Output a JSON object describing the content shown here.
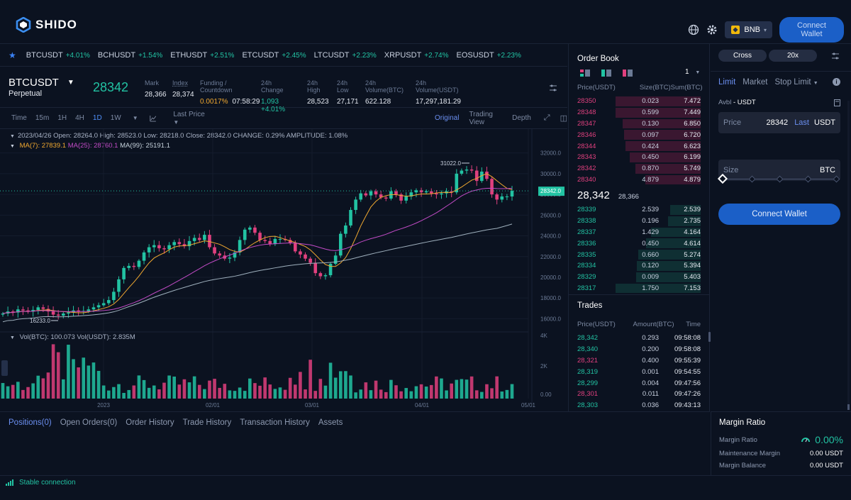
{
  "header": {
    "logo": "SHIDO",
    "network": "BNB",
    "connect_label": "Connect Wallet"
  },
  "ticker": [
    {
      "sym": "BTCUSDT",
      "chg": "+4.01%"
    },
    {
      "sym": "BCHUSDT",
      "chg": "+1.54%"
    },
    {
      "sym": "ETHUSDT",
      "chg": "+2.51%"
    },
    {
      "sym": "ETCUSDT",
      "chg": "+2.45%"
    },
    {
      "sym": "LTCUSDT",
      "chg": "+2.23%"
    },
    {
      "sym": "XRPUSDT",
      "chg": "+2.74%"
    },
    {
      "sym": "EOSUSDT",
      "chg": "+2.23%"
    }
  ],
  "symbol": {
    "name": "BTCUSDT",
    "type": "Perpetual",
    "price": "28342"
  },
  "stats": [
    {
      "label": "Mark",
      "value": "28,366"
    },
    {
      "label": "Index",
      "value": "28,374"
    },
    {
      "label": "Funding / Countdown",
      "value": "0.0017%",
      "value2": "07:58:29"
    },
    {
      "label": "24h Change",
      "value": "1,093 +4.01%"
    },
    {
      "label": "24h High",
      "value": "28,523"
    },
    {
      "label": "24h Low",
      "value": "27,171"
    },
    {
      "label": "24h Volume(BTC)",
      "value": "622.128"
    },
    {
      "label": "24h Volume(USDT)",
      "value": "17,297,181.29"
    }
  ],
  "toolbar": {
    "time": "Time",
    "intervals": [
      "15m",
      "1H",
      "4H",
      "1D",
      "1W"
    ],
    "last_price": "Last Price",
    "views": [
      "Original",
      "Trading View",
      "Depth"
    ]
  },
  "chart_info": {
    "ohlc": "2023/04/26  Open: 28264.0  High: 28523.0  Low: 28218.0  Close: 28342.0  CHANGE: 0.29%  AMPLITUDE: 1.08%",
    "ma7": "MA(7): 27839.1",
    "ma25": "MA(25): 28760.1",
    "ma99": "MA(99): 25191.1",
    "vol_btc": "Vol(BTC): 100.073",
    "vol_usdt": "Vol(USDT): 2.835M"
  },
  "chart_data": {
    "type": "candlestick",
    "y_ticks": [
      "32000.0",
      "30000.0",
      "28000.0",
      "26000.0",
      "24000.0",
      "22000.0",
      "20000.0",
      "18000.0",
      "16000.0"
    ],
    "ylim": [
      15000,
      32800
    ],
    "x_ticks": [
      "2023",
      "02/01",
      "03/01",
      "04/01",
      "05/01"
    ],
    "high_label": "31022.0",
    "low_label": "16233.0",
    "last_label": "28342.0",
    "vol_ticks": [
      "4K",
      "2K",
      "0.00"
    ],
    "closes": [
      16500,
      16700,
      16600,
      16900,
      16800,
      16700,
      16850,
      17100,
      16950,
      16700,
      16400,
      16300,
      16500,
      16600,
      16800,
      16700,
      16750,
      16900,
      17100,
      17300,
      17500,
      17800,
      18600,
      19800,
      20900,
      21100,
      21000,
      21600,
      22400,
      22900,
      23100,
      22800,
      22700,
      23100,
      23400,
      23200,
      23000,
      23500,
      23800,
      23600,
      24100,
      22900,
      22300,
      22100,
      21800,
      21900,
      22400,
      23600,
      24600,
      24800,
      24300,
      23600,
      23500,
      23200,
      23700,
      23700,
      23600,
      23300,
      22500,
      22200,
      21800,
      21400,
      20400,
      20100,
      20200,
      21300,
      22100,
      24200,
      25000,
      26500,
      27500,
      28100,
      27900,
      28300,
      28000,
      27700,
      27600,
      28300,
      28000,
      27400,
      27800,
      28200,
      28400,
      28200,
      28300,
      28100,
      28000,
      28100,
      28300,
      28200,
      30000,
      30300,
      30400,
      30300,
      29300,
      30200,
      29500,
      28000,
      27500,
      27800,
      27800,
      28342
    ],
    "volume_shape": "bars, taller in mid-January and mid-March"
  },
  "orderbook": {
    "title": "Order Book",
    "headers": [
      "Price(USDT)",
      "Size(BTC)",
      "Sum(BTC)"
    ],
    "depth": "1",
    "asks": [
      [
        "28350",
        "0.023",
        "7.472"
      ],
      [
        "28348",
        "0.599",
        "7.449"
      ],
      [
        "28347",
        "0.130",
        "6.850"
      ],
      [
        "28346",
        "0.097",
        "6.720"
      ],
      [
        "28344",
        "0.424",
        "6.623"
      ],
      [
        "28343",
        "0.450",
        "6.199"
      ],
      [
        "28342",
        "0.870",
        "5.749"
      ],
      [
        "28340",
        "4.879",
        "4.879"
      ]
    ],
    "last": "28,342",
    "mark": "28,366",
    "bids": [
      [
        "28339",
        "2.539",
        "2.539"
      ],
      [
        "28338",
        "0.196",
        "2.735"
      ],
      [
        "28337",
        "1.429",
        "4.164"
      ],
      [
        "28336",
        "0.450",
        "4.614"
      ],
      [
        "28335",
        "0.660",
        "5.274"
      ],
      [
        "28334",
        "0.120",
        "5.394"
      ],
      [
        "28329",
        "0.009",
        "5.403"
      ],
      [
        "28317",
        "1.750",
        "7.153"
      ]
    ]
  },
  "trades": {
    "title": "Trades",
    "headers": [
      "Price(USDT)",
      "Amount(BTC)",
      "Time"
    ],
    "rows": [
      [
        "28,342",
        "0.293",
        "09:58:08",
        "g"
      ],
      [
        "28,340",
        "0.200",
        "09:58:08",
        "g"
      ],
      [
        "28,321",
        "0.400",
        "09:55:39",
        "r"
      ],
      [
        "28,319",
        "0.001",
        "09:54:55",
        "g"
      ],
      [
        "28,299",
        "0.004",
        "09:47:56",
        "g"
      ],
      [
        "28,301",
        "0.011",
        "09:47:26",
        "r"
      ],
      [
        "28,303",
        "0.036",
        "09:43:13",
        "g"
      ]
    ]
  },
  "order_panel": {
    "margin_mode": "Cross",
    "leverage": "20x",
    "types": [
      "Limit",
      "Market",
      "Stop Limit"
    ],
    "avbl_label": "Avbl",
    "avbl_unit": "- USDT",
    "price_label": "Price",
    "price_value": "28342",
    "price_last": "Last",
    "price_unit": "USDT",
    "size_label": "Size",
    "size_unit": "BTC",
    "connect_label": "Connect Wallet"
  },
  "bottom_tabs": [
    "Positions(0)",
    "Open Orders(0)",
    "Order History",
    "Trade History",
    "Transaction History",
    "Assets"
  ],
  "margin": {
    "title": "Margin Ratio",
    "ratio_label": "Margin Ratio",
    "ratio_value": "0.00%",
    "maint_label": "Maintenance Margin",
    "maint_value": "0.00 USDT",
    "balance_label": "Margin Balance",
    "balance_value": "0.00 USDT"
  },
  "status": "Stable connection",
  "colors": {
    "up": "#22c3a3",
    "down": "#e0407e",
    "accent": "#1b5fc7",
    "bg": "#0b1220"
  }
}
